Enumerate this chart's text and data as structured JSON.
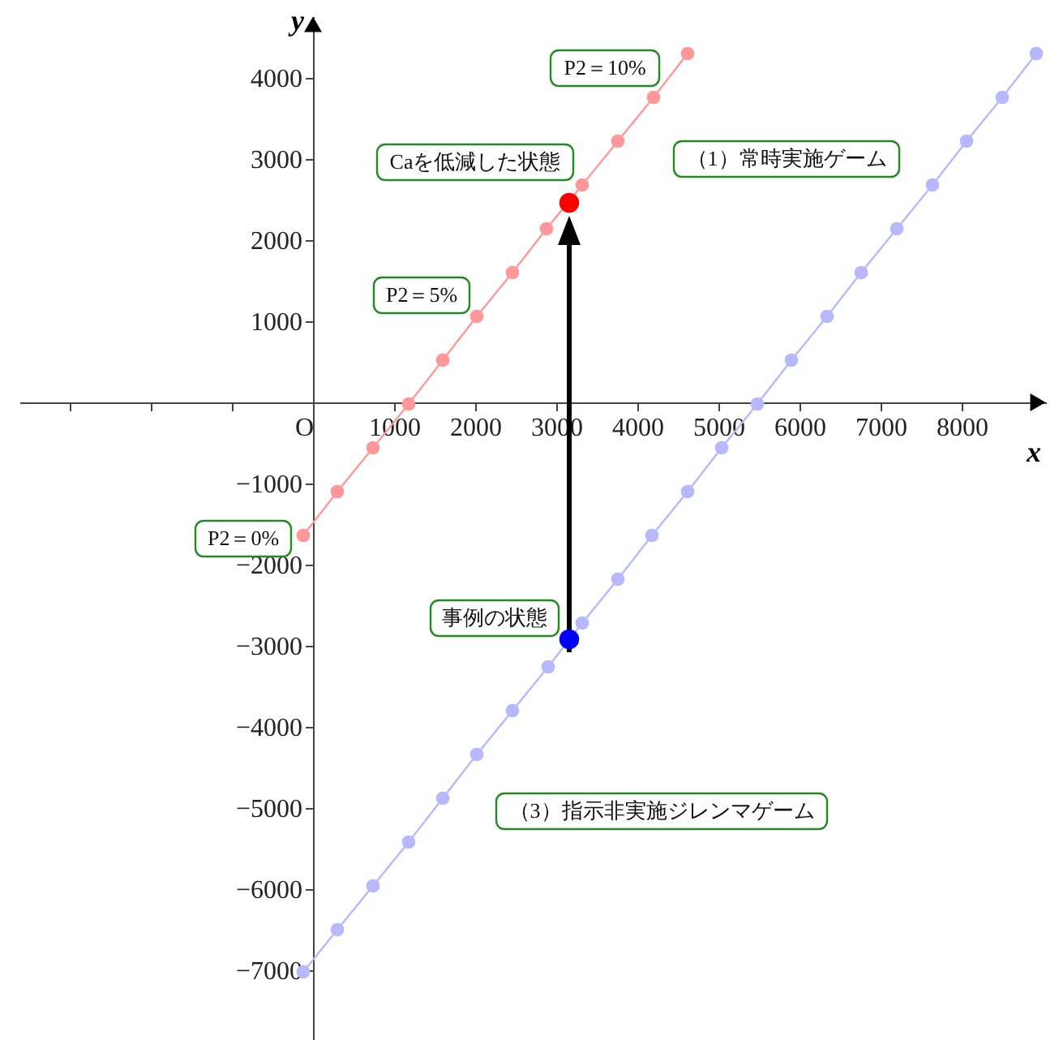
{
  "chart_data": {
    "type": "line",
    "xlabel": "x",
    "ylabel": "y",
    "marker": "circle",
    "grid": false,
    "xlim": [
      -3620,
      9040
    ],
    "ylim": [
      -7860,
      4760
    ],
    "xticks": [
      {
        "value": -3000,
        "label": null
      },
      {
        "value": -2000,
        "label": null
      },
      {
        "value": -1000,
        "label": null
      },
      {
        "value": 0,
        "label": "O"
      },
      1000,
      2000,
      3000,
      4000,
      5000,
      6000,
      7000,
      8000
    ],
    "yticks": [
      -7000,
      -6000,
      -5000,
      -4000,
      -3000,
      -2000,
      -1000,
      1000,
      2000,
      3000,
      4000
    ],
    "series": [
      {
        "color": "#ff9999",
        "x": [
          -120,
          300,
          740,
          1180,
          1600,
          2020,
          2460,
          2880,
          3320,
          3760,
          4200,
          4620
        ],
        "values": [
          -1640,
          -1100,
          -560,
          -20,
          520,
          1060,
          1600,
          2140,
          2680,
          3220,
          3760,
          4300
        ]
      },
      {
        "color": "#b8b8ff",
        "x": [
          -120,
          300,
          740,
          1180,
          1600,
          2020,
          2460,
          2900,
          3320,
          3760,
          4180,
          4620,
          5040,
          5480,
          5900,
          6340,
          6760,
          7200,
          7640,
          8060,
          8500,
          8920
        ],
        "values": [
          -7020,
          -6500,
          -5960,
          -5420,
          -4880,
          -4340,
          -3800,
          -3260,
          -2720,
          -2180,
          -1640,
          -1100,
          -560,
          -20,
          520,
          1060,
          1600,
          2140,
          2680,
          3220,
          3760,
          4300
        ]
      },
      {
        "type": "scatter",
        "color": "#ff0000",
        "x": [
          3160
        ],
        "values": [
          2460
        ]
      },
      {
        "type": "scatter",
        "color": "#0000ff",
        "x": [
          3160
        ],
        "values": [
          -2920
        ]
      }
    ],
    "annotations": [
      "P2＝10%",
      "Caを低減した状態",
      "（1）常時実施ゲーム",
      "P2＝5%",
      "P2＝0%",
      "事例の状態",
      "（3）指示非実施ジレンマゲーム"
    ]
  }
}
